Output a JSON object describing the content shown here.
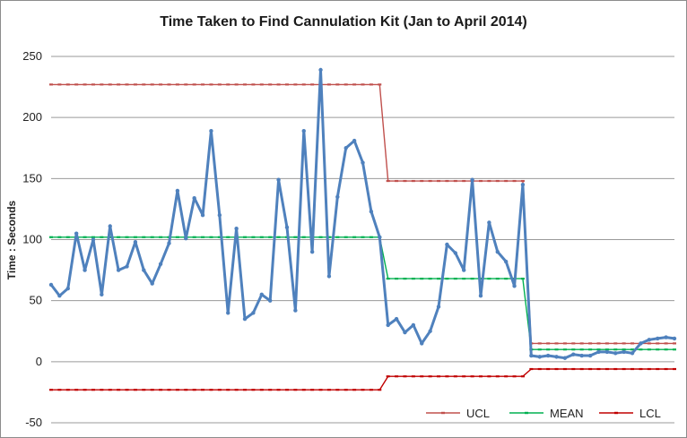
{
  "chart_data": {
    "type": "line",
    "title": "Time Taken to Find Cannulation Kit  (Jan to April 2014)",
    "ylabel": "Time : Seconds",
    "xlabel": "",
    "ylim": [
      -50,
      250
    ],
    "yticks": [
      -50,
      0,
      50,
      100,
      150,
      200,
      250
    ],
    "grid": true,
    "legend_position": "bottom-right",
    "series": [
      {
        "key": "data",
        "color": "#4f81bd",
        "values": [
          63,
          54,
          60,
          105,
          75,
          100,
          55,
          111,
          75,
          78,
          98,
          75,
          64,
          80,
          97,
          140,
          101,
          134,
          120,
          189,
          120,
          40,
          109,
          35,
          40,
          55,
          50,
          149,
          110,
          42,
          189,
          90,
          239,
          70,
          135,
          175,
          181,
          163,
          123,
          102,
          30,
          35,
          24,
          30,
          15,
          25,
          45,
          96,
          89,
          75,
          149,
          54,
          114,
          90,
          82,
          62,
          145,
          5,
          4,
          5,
          4,
          3,
          6,
          5,
          5,
          8,
          8,
          7,
          8,
          7,
          15,
          18,
          19,
          20,
          19
        ]
      },
      {
        "name": "UCL",
        "color": "#c0504d",
        "values": [
          227,
          227,
          227,
          227,
          227,
          227,
          227,
          227,
          227,
          227,
          227,
          227,
          227,
          227,
          227,
          227,
          227,
          227,
          227,
          227,
          227,
          227,
          227,
          227,
          227,
          227,
          227,
          227,
          227,
          227,
          227,
          227,
          227,
          227,
          227,
          227,
          227,
          227,
          227,
          227,
          148,
          148,
          148,
          148,
          148,
          148,
          148,
          148,
          148,
          148,
          148,
          148,
          148,
          148,
          148,
          148,
          148,
          15,
          15,
          15,
          15,
          15,
          15,
          15,
          15,
          15,
          15,
          15,
          15,
          15,
          15,
          15,
          15,
          15,
          15
        ]
      },
      {
        "name": "MEAN",
        "color": "#00b050",
        "values": [
          102,
          102,
          102,
          102,
          102,
          102,
          102,
          102,
          102,
          102,
          102,
          102,
          102,
          102,
          102,
          102,
          102,
          102,
          102,
          102,
          102,
          102,
          102,
          102,
          102,
          102,
          102,
          102,
          102,
          102,
          102,
          102,
          102,
          102,
          102,
          102,
          102,
          102,
          102,
          102,
          68,
          68,
          68,
          68,
          68,
          68,
          68,
          68,
          68,
          68,
          68,
          68,
          68,
          68,
          68,
          68,
          68,
          10,
          10,
          10,
          10,
          10,
          10,
          10,
          10,
          10,
          10,
          10,
          10,
          10,
          10,
          10,
          10,
          10,
          10
        ]
      },
      {
        "name": "LCL",
        "color": "#c00000",
        "values": [
          -23,
          -23,
          -23,
          -23,
          -23,
          -23,
          -23,
          -23,
          -23,
          -23,
          -23,
          -23,
          -23,
          -23,
          -23,
          -23,
          -23,
          -23,
          -23,
          -23,
          -23,
          -23,
          -23,
          -23,
          -23,
          -23,
          -23,
          -23,
          -23,
          -23,
          -23,
          -23,
          -23,
          -23,
          -23,
          -23,
          -23,
          -23,
          -23,
          -23,
          -12,
          -12,
          -12,
          -12,
          -12,
          -12,
          -12,
          -12,
          -12,
          -12,
          -12,
          -12,
          -12,
          -12,
          -12,
          -12,
          -12,
          -6,
          -6,
          -6,
          -6,
          -6,
          -6,
          -6,
          -6,
          -6,
          -6,
          -6,
          -6,
          -6,
          -6,
          -6,
          -6,
          -6,
          -6
        ]
      }
    ]
  }
}
